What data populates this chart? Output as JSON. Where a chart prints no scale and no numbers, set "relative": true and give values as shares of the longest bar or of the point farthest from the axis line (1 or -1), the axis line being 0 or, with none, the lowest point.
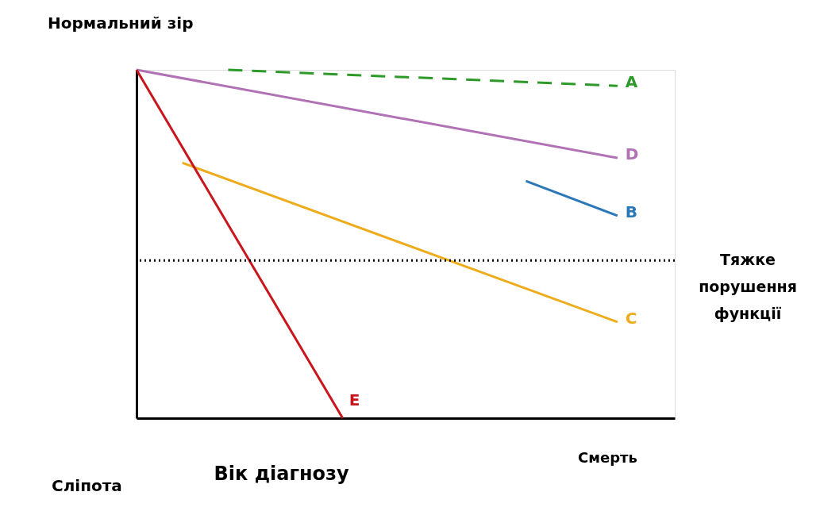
{
  "chart_data": {
    "type": "line",
    "relative": true,
    "xlabel": "Вік діагнозу",
    "tick_labels": false,
    "grid": false,
    "marker": "none",
    "categories": [
      null,
      null,
      null,
      null,
      null,
      null,
      null,
      null,
      null,
      null,
      null,
      null,
      null,
      null,
      null,
      null,
      null,
      null,
      null,
      null,
      null,
      null
    ],
    "series": [
      {
        "name": "A",
        "color": "#2e9a2a",
        "line_style": "dashed",
        "values": [
          null,
          null,
          null,
          null,
          1.0,
          null,
          null,
          null,
          null,
          null,
          null,
          null,
          null,
          null,
          null,
          null,
          null,
          null,
          null,
          null,
          null,
          0.954
        ]
      },
      {
        "name": "D",
        "color": "#b072b4",
        "values": [
          1.0,
          null,
          null,
          null,
          null,
          null,
          null,
          null,
          null,
          null,
          null,
          null,
          null,
          null,
          null,
          null,
          null,
          null,
          null,
          null,
          null,
          0.747
        ]
      },
      {
        "name": "B",
        "color": "#2a78b8",
        "values": [
          null,
          null,
          null,
          null,
          null,
          null,
          null,
          null,
          null,
          null,
          null,
          null,
          null,
          null,
          null,
          null,
          null,
          0.681,
          null,
          null,
          null,
          0.581
        ]
      },
      {
        "name": "C",
        "color": "#eeac1c",
        "values": [
          null,
          null,
          0.733,
          null,
          null,
          null,
          null,
          null,
          null,
          null,
          null,
          null,
          null,
          null,
          null,
          null,
          null,
          null,
          null,
          null,
          null,
          0.276
        ]
      },
      {
        "name": "E",
        "color": "#c8161d",
        "values": [
          1.0,
          null,
          null,
          null,
          null,
          null,
          null,
          null,
          null,
          0.0,
          null,
          null,
          null,
          null,
          null,
          null,
          null,
          null,
          null,
          null,
          null,
          null
        ]
      }
    ],
    "ref_lines": [
      {
        "axis": "y",
        "value": 0.453,
        "label": "Тяжке порушення функції",
        "line_style": "dotted",
        "color": "#000000"
      }
    ],
    "annotations": [
      "Нормальний зір",
      "Сліпота",
      "Смерть"
    ]
  }
}
